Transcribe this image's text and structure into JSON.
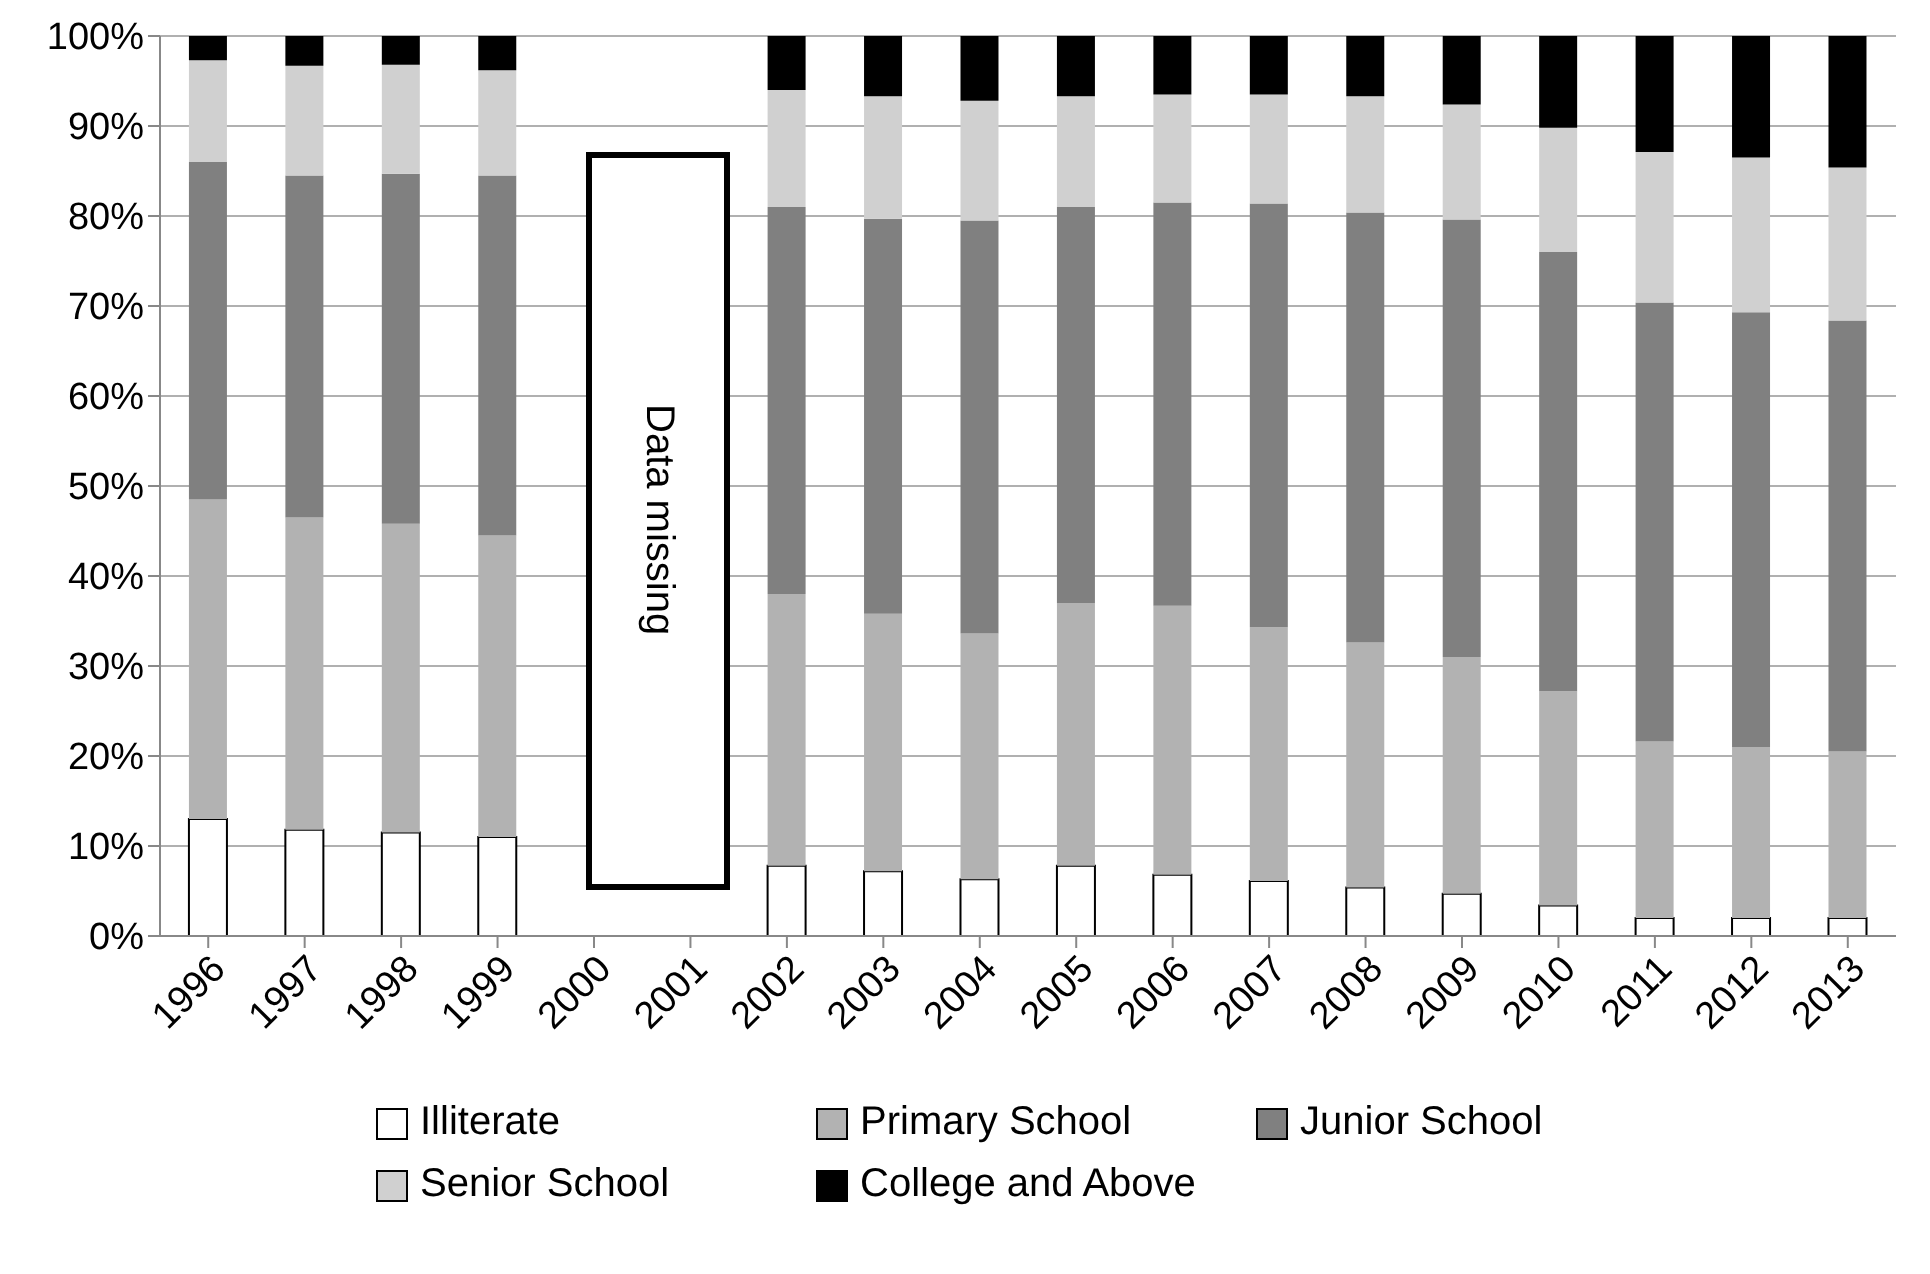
{
  "chart_data": {
    "type": "bar",
    "stacked": true,
    "categories": [
      "1996",
      "1997",
      "1998",
      "1999",
      "2000",
      "2001",
      "2002",
      "2003",
      "2004",
      "2005",
      "2006",
      "2007",
      "2008",
      "2009",
      "2010",
      "2011",
      "2012",
      "2013"
    ],
    "series": [
      {
        "name": "Illiterate",
        "color": "#ffffff",
        "values": [
          13,
          11.8,
          11.5,
          11,
          null,
          null,
          7.8,
          7.2,
          6.3,
          7.8,
          6.8,
          6.1,
          5.4,
          4.7,
          3.4,
          2,
          2,
          2
        ]
      },
      {
        "name": "Primary School",
        "color": "#b2b2b2",
        "values": [
          35.5,
          34.7,
          34.3,
          33.5,
          null,
          null,
          30.2,
          28.6,
          27.3,
          29.2,
          29.9,
          28.2,
          27.2,
          26.3,
          23.8,
          19.6,
          19,
          18.5
        ]
      },
      {
        "name": "Junior School",
        "color": "#808080",
        "values": [
          37.5,
          38,
          38.9,
          40,
          null,
          null,
          43,
          43.9,
          45.9,
          44,
          44.8,
          47.1,
          47.8,
          48.6,
          48.8,
          48.8,
          48.3,
          47.9
        ]
      },
      {
        "name": "Senior School",
        "color": "#d0d0d0",
        "values": [
          11.3,
          12.2,
          12.1,
          11.7,
          null,
          null,
          13,
          13.6,
          13.3,
          12.3,
          12,
          12.1,
          12.9,
          12.8,
          13.8,
          16.7,
          17.2,
          17
        ]
      },
      {
        "name": "College and Above",
        "color": "#000000",
        "values": [
          2.7,
          3.3,
          3.2,
          3.8,
          null,
          null,
          6,
          6.7,
          7.2,
          6.7,
          6.5,
          6.5,
          6.7,
          7.6,
          10.2,
          12.9,
          13.5,
          14.6
        ]
      }
    ],
    "ylim": [
      0,
      100
    ],
    "yticks": [
      {
        "value": 0,
        "label": "0%"
      },
      {
        "value": 10,
        "label": "10%"
      },
      {
        "value": 20,
        "label": "20%"
      },
      {
        "value": 30,
        "label": "30%"
      },
      {
        "value": 40,
        "label": "40%"
      },
      {
        "value": 50,
        "label": "50%"
      },
      {
        "value": 60,
        "label": "60%"
      },
      {
        "value": 70,
        "label": "70%"
      },
      {
        "value": 80,
        "label": "80%"
      },
      {
        "value": 90,
        "label": "90%"
      },
      {
        "value": 100,
        "label": "100%"
      }
    ],
    "grid": "y",
    "legend": "bottom",
    "annotations": [
      "Data missing"
    ]
  }
}
